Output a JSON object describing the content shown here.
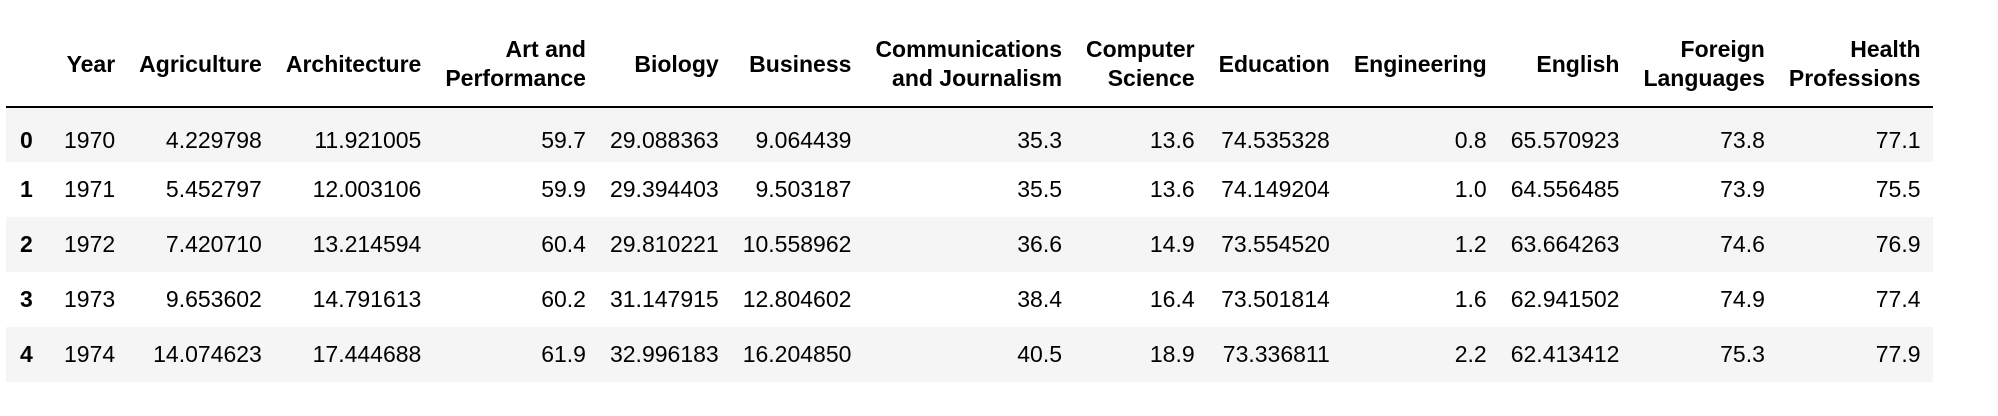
{
  "table": {
    "index_header": "",
    "columns": [
      "Year",
      "Agriculture",
      "Architecture",
      "Art and Performance",
      "Biology",
      "Business",
      "Communications and Journalism",
      "Computer Science",
      "Education",
      "Engineering",
      "English",
      "Foreign Languages",
      "Health Professions"
    ],
    "column_lines": [
      [
        "Year"
      ],
      [
        "Agriculture"
      ],
      [
        "Architecture"
      ],
      [
        "Art and",
        "Performance"
      ],
      [
        "Biology"
      ],
      [
        "Business"
      ],
      [
        "Communications",
        "and Journalism"
      ],
      [
        "Computer",
        "Science"
      ],
      [
        "Education"
      ],
      [
        "Engineering"
      ],
      [
        "English"
      ],
      [
        "Foreign",
        "Languages"
      ],
      [
        "Health",
        "Professions"
      ]
    ],
    "rows": [
      {
        "index": "0",
        "cells": [
          "1970",
          "4.229798",
          "11.921005",
          "59.7",
          "29.088363",
          "9.064439",
          "35.3",
          "13.6",
          "74.535328",
          "0.8",
          "65.570923",
          "73.8",
          "77.1"
        ]
      },
      {
        "index": "1",
        "cells": [
          "1971",
          "5.452797",
          "12.003106",
          "59.9",
          "29.394403",
          "9.503187",
          "35.5",
          "13.6",
          "74.149204",
          "1.0",
          "64.556485",
          "73.9",
          "75.5"
        ]
      },
      {
        "index": "2",
        "cells": [
          "1972",
          "7.420710",
          "13.214594",
          "60.4",
          "29.810221",
          "10.558962",
          "36.6",
          "14.9",
          "73.554520",
          "1.2",
          "63.664263",
          "74.6",
          "76.9"
        ]
      },
      {
        "index": "3",
        "cells": [
          "1973",
          "9.653602",
          "14.791613",
          "60.2",
          "31.147915",
          "12.804602",
          "38.4",
          "16.4",
          "73.501814",
          "1.6",
          "62.941502",
          "74.9",
          "77.4"
        ]
      },
      {
        "index": "4",
        "cells": [
          "1974",
          "14.074623",
          "17.444688",
          "61.9",
          "32.996183",
          "16.204850",
          "40.5",
          "18.9",
          "73.336811",
          "2.2",
          "62.413412",
          "75.3",
          "77.9"
        ]
      }
    ]
  }
}
